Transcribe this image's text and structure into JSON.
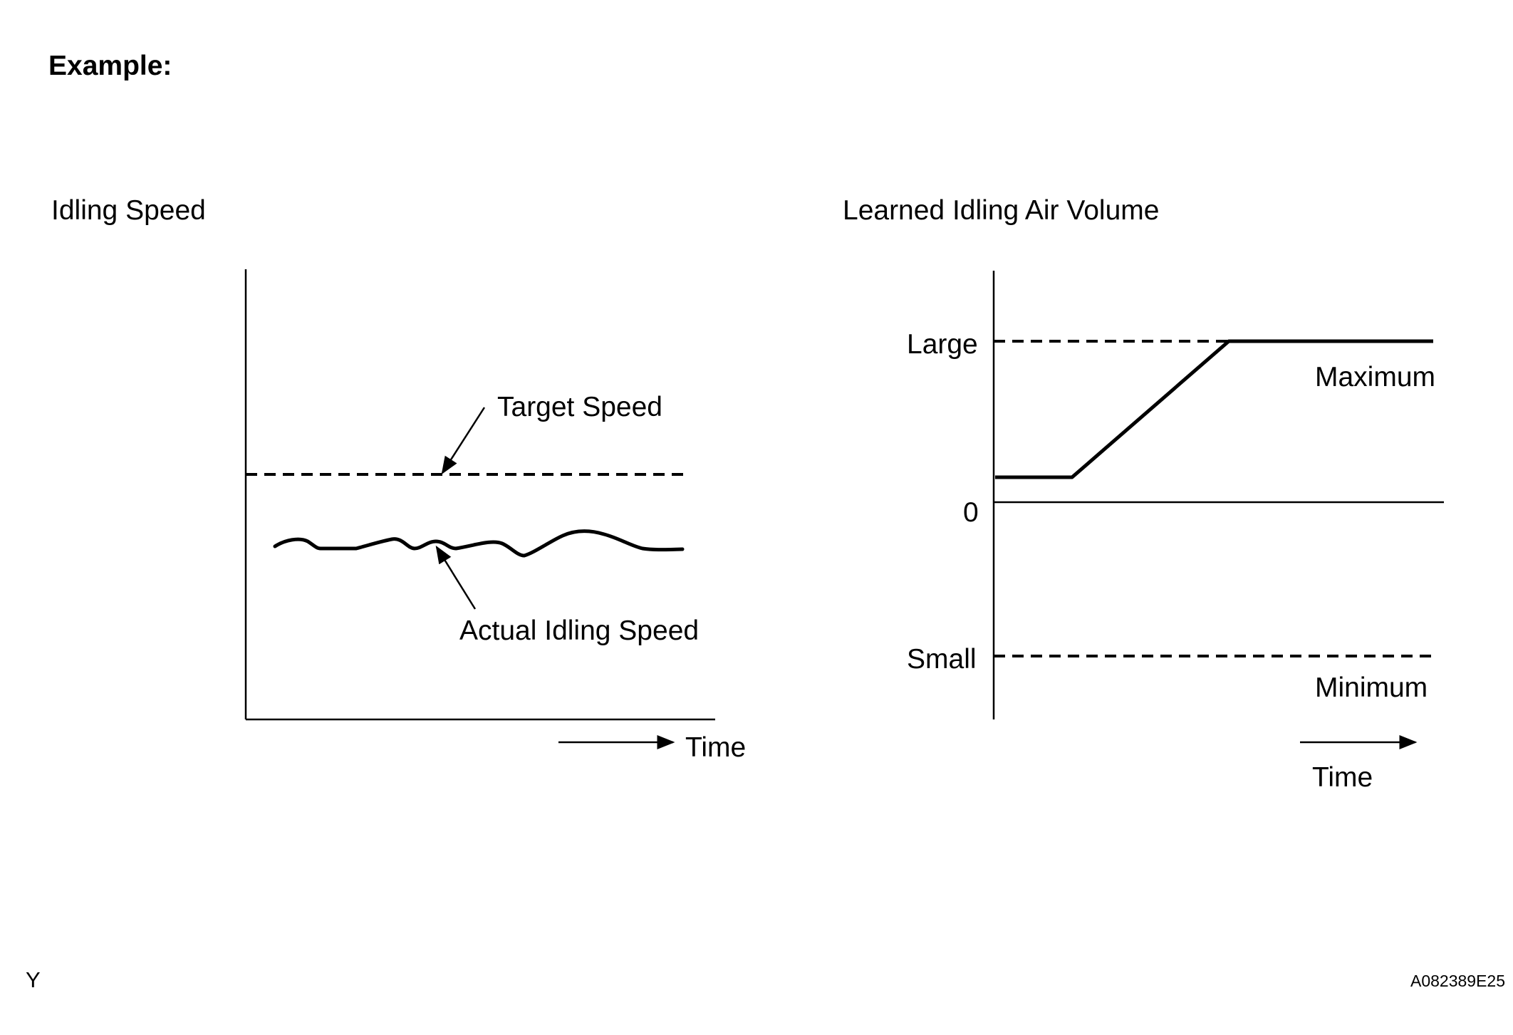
{
  "heading": "Example:",
  "left_chart": {
    "title": "Idling Speed",
    "target_label": "Target Speed",
    "actual_label": "Actual Idling Speed",
    "time_label": "Time"
  },
  "right_chart": {
    "title": "Learned Idling Air Volume",
    "y_large": "Large",
    "y_zero": "0",
    "y_small": "Small",
    "max_label": "Maximum",
    "min_label": "Minimum",
    "time_label": "Time"
  },
  "footer": {
    "left_code": "Y",
    "figure_id": "A082389E25"
  }
}
